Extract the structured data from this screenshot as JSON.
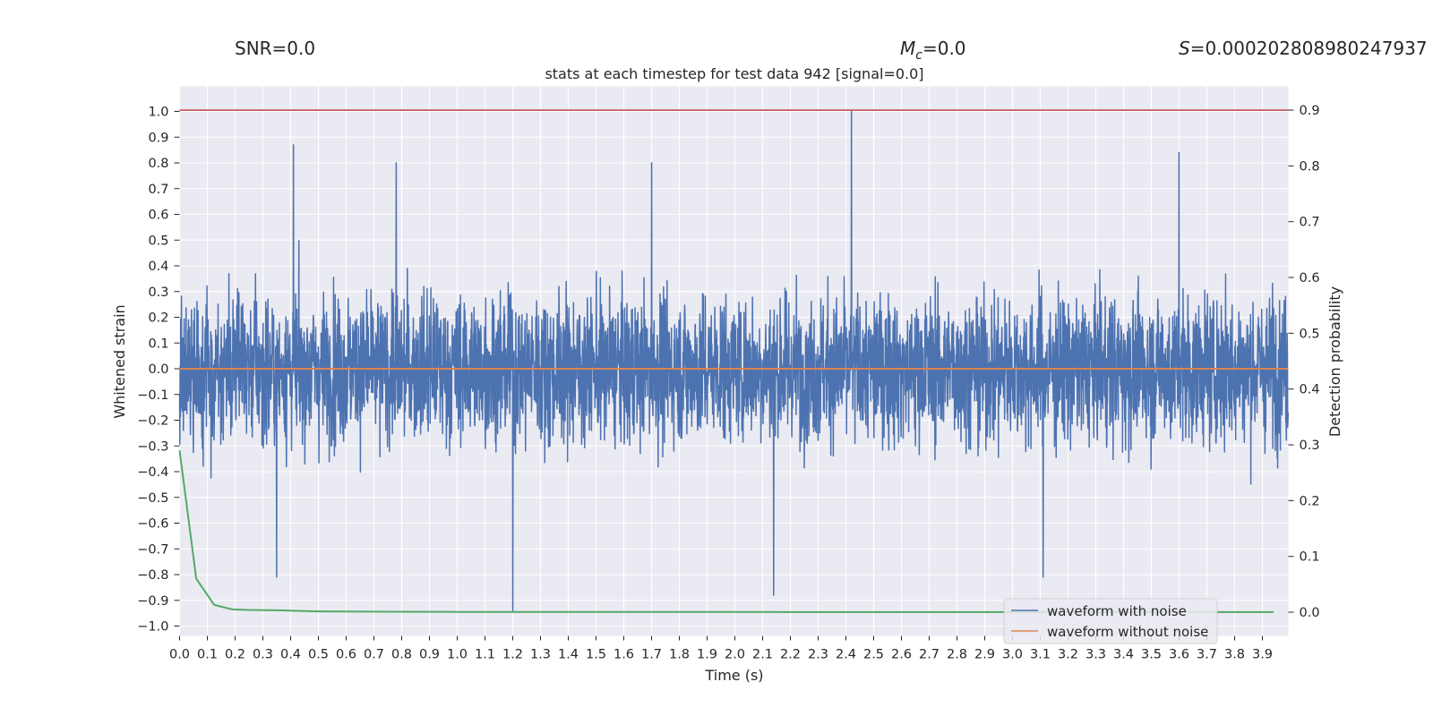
{
  "chart_data": {
    "type": "line",
    "header": {
      "snr": "SNR=0.0",
      "mc_symbol": "M",
      "mc_sub": "c",
      "mc_value": "=0.0",
      "s_symbol": "S",
      "s_value": "=0.000202808980247937"
    },
    "title": "stats at each timestep for test data 942 [signal=0.0]",
    "xlabel": "Time (s)",
    "ylabel_left": "Whitened strain",
    "ylabel_right": "Detection probability",
    "xlim": [
      0.0,
      4.0
    ],
    "ylim_left": [
      -1.07,
      1.1
    ],
    "ylim_right": [
      -0.04,
      0.94
    ],
    "x_ticks": [
      "0.0",
      "0.1",
      "0.2",
      "0.3",
      "0.4",
      "0.5",
      "0.6",
      "0.7",
      "0.8",
      "0.9",
      "1.0",
      "1.1",
      "1.2",
      "1.3",
      "1.4",
      "1.5",
      "1.6",
      "1.7",
      "1.8",
      "1.9",
      "2.0",
      "2.1",
      "2.2",
      "2.3",
      "2.4",
      "2.5",
      "2.6",
      "2.7",
      "2.8",
      "2.9",
      "3.0",
      "3.1",
      "3.2",
      "3.3",
      "3.4",
      "3.5",
      "3.6",
      "3.7",
      "3.8",
      "3.9"
    ],
    "y_ticks_left": [
      "1.0",
      "0.9",
      "0.8",
      "0.7",
      "0.6",
      "0.5",
      "0.4",
      "0.3",
      "0.2",
      "0.1",
      "0.0",
      "−0.1",
      "−0.2",
      "−0.3",
      "−0.4",
      "−0.5",
      "−0.6",
      "−0.7",
      "−0.8",
      "−0.9",
      "−1.0"
    ],
    "y_ticks_right": [
      "0.9",
      "0.8",
      "0.7",
      "0.6",
      "0.5",
      "0.4",
      "0.3",
      "0.2",
      "0.1",
      "0.0"
    ],
    "grid": true,
    "legend_position": "bottom-right",
    "colors": {
      "background": "#eaeaf2",
      "grid": "#ffffff",
      "noise": "#4c72b0",
      "clean": "#dd8452",
      "probability": "#55a868",
      "threshold": "#c44e52"
    },
    "series": [
      {
        "name": "waveform with noise",
        "note_description": "dense noisy whitened strain, 4096 samples",
        "notable_points": [
          {
            "x": 0.41,
            "y": 0.87
          },
          {
            "x": 0.78,
            "y": 0.8
          },
          {
            "x": 1.2,
            "y": -0.94
          },
          {
            "x": 1.7,
            "y": 0.8
          },
          {
            "x": 2.14,
            "y": -0.88
          },
          {
            "x": 2.42,
            "y": 1.0
          },
          {
            "x": 3.11,
            "y": -0.81
          },
          {
            "x": 3.6,
            "y": 0.84
          },
          {
            "x": 0.35,
            "y": -0.81
          }
        ]
      },
      {
        "name": "waveform without noise",
        "values_description": "constant zero",
        "x": [
          0.0,
          4.0
        ],
        "y": [
          0.0,
          0.0
        ]
      },
      {
        "name": "Detection probability",
        "axis": "right",
        "x": [
          0.0,
          0.06,
          0.125,
          0.19,
          0.25,
          0.35,
          0.5,
          0.75,
          1.0,
          2.0,
          3.0,
          3.94
        ],
        "y": [
          0.29,
          0.06,
          0.013,
          0.005,
          0.004,
          0.0035,
          0.0015,
          0.0008,
          0.0005,
          0.0003,
          0.0002,
          0.0002
        ]
      },
      {
        "name": "threshold",
        "axis": "right",
        "x": [
          0.0,
          4.0
        ],
        "y": [
          0.9,
          0.9
        ]
      }
    ],
    "legend": [
      "waveform with noise",
      "waveform without noise"
    ]
  }
}
